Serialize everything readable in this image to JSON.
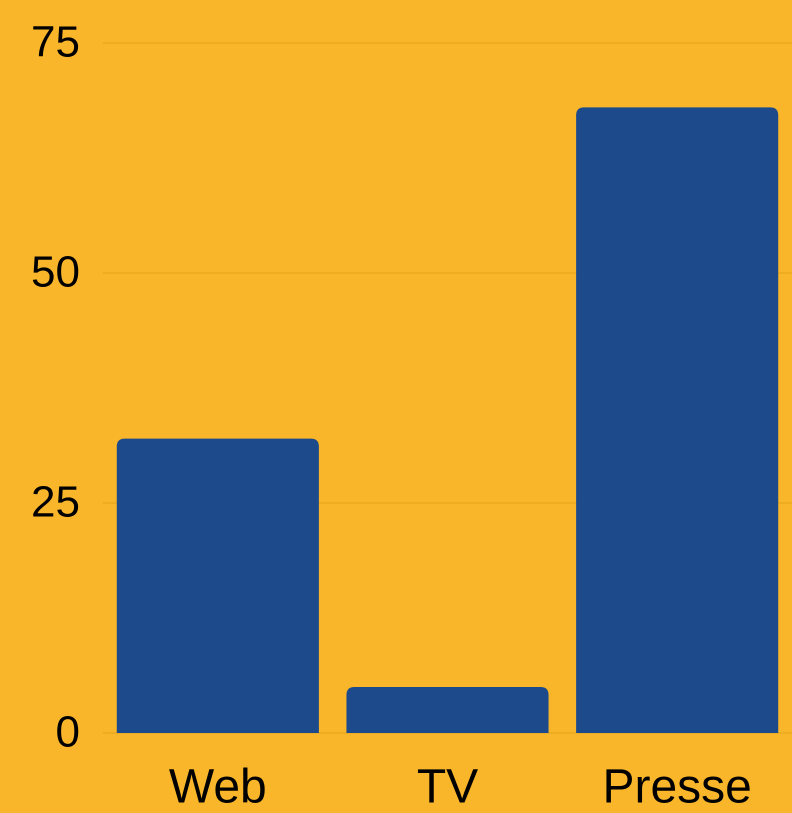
{
  "chart_data": {
    "type": "bar",
    "categories": [
      "Web",
      "TV",
      "Presse"
    ],
    "values": [
      32,
      5,
      68
    ],
    "color": "#1d4a8b",
    "ylim": [
      0,
      75
    ],
    "yticks": [
      0,
      25,
      50,
      75
    ],
    "grid": true
  }
}
